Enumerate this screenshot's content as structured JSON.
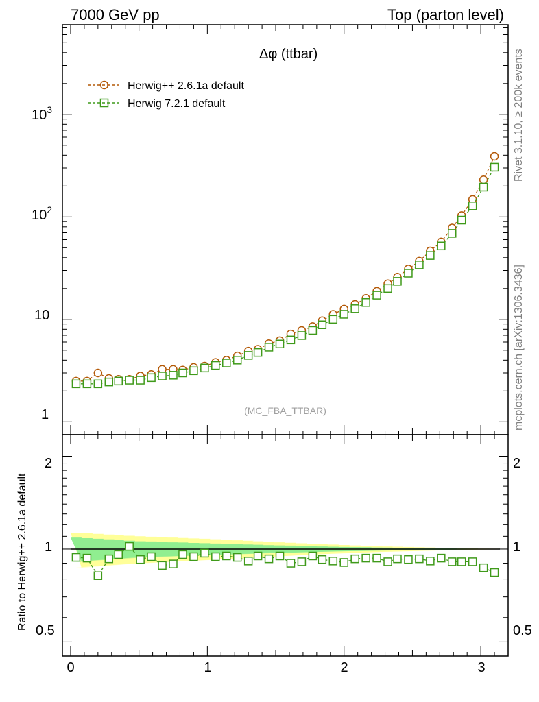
{
  "header": {
    "left": "7000 GeV pp",
    "right": "Top (parton level)"
  },
  "plot": {
    "title": "Δφ (ttbar)",
    "watermark": "(MC_FBA_TTBAR)"
  },
  "side": {
    "rivet": "Rivet 3.1.10, ≥ 200k events",
    "mcplots": "mcplots.cern.ch [arXiv:1306.3436]"
  },
  "legend": {
    "s1": "Herwig++ 2.6.1a default",
    "s2": "Herwig 7.2.1 default"
  },
  "ratio": {
    "ylabel": "Ratio to Herwig++ 2.6.1a default"
  },
  "ticks": {
    "main_y": [
      "1",
      "10",
      "10",
      "10"
    ],
    "main_y_exp": [
      "2",
      "3"
    ],
    "ratio_y": [
      "0.5",
      "1",
      "2"
    ],
    "x": [
      "0",
      "1",
      "2",
      "3"
    ]
  },
  "colors": {
    "s1": "#b35806",
    "s2": "#3f9a1a",
    "band_inner": "#90ee90",
    "band_outer": "#ffff99"
  },
  "chart_data": {
    "type": "line",
    "main": {
      "x": [
        0.04,
        0.12,
        0.2,
        0.28,
        0.35,
        0.43,
        0.51,
        0.59,
        0.67,
        0.75,
        0.82,
        0.9,
        0.98,
        1.06,
        1.14,
        1.22,
        1.3,
        1.37,
        1.45,
        1.53,
        1.61,
        1.69,
        1.77,
        1.84,
        1.92,
        2.0,
        2.08,
        2.16,
        2.24,
        2.32,
        2.39,
        2.47,
        2.55,
        2.63,
        2.71,
        2.79,
        2.86,
        2.94,
        3.02,
        3.1
      ],
      "series": [
        {
          "name": "Herwig++ 2.6.1a default",
          "values": [
            2.5,
            2.5,
            3.0,
            2.65,
            2.6,
            2.6,
            2.8,
            2.9,
            3.25,
            3.25,
            3.2,
            3.4,
            3.5,
            3.8,
            4.0,
            4.4,
            4.9,
            5.1,
            5.8,
            6.2,
            7.2,
            7.8,
            8.5,
            9.7,
            11.2,
            12.6,
            14.0,
            16.0,
            18.8,
            22.3,
            25.8,
            31.0,
            37.0,
            46.5,
            57.0,
            78.0,
            103.0,
            148.0,
            230.0,
            390.0
          ]
        },
        {
          "name": "Herwig 7.2.1 default",
          "values": [
            2.35,
            2.35,
            2.35,
            2.45,
            2.5,
            2.55,
            2.55,
            2.7,
            2.8,
            2.85,
            3.0,
            3.15,
            3.35,
            3.55,
            3.75,
            4.0,
            4.45,
            4.75,
            5.35,
            5.75,
            6.3,
            6.95,
            7.8,
            8.85,
            10.0,
            11.2,
            12.7,
            14.6,
            17.2,
            20.0,
            23.5,
            28.2,
            34.0,
            42.0,
            52.0,
            69.0,
            93.0,
            128.0,
            195.0,
            305.0
          ]
        }
      ],
      "yscale": "log",
      "ylim": [
        0.75,
        7500
      ],
      "xlim": [
        -0.06,
        3.2
      ]
    },
    "ratio": {
      "values": [
        0.94,
        0.935,
        0.82,
        0.93,
        0.96,
        1.02,
        0.925,
        0.945,
        0.885,
        0.895,
        0.96,
        0.945,
        0.97,
        0.945,
        0.95,
        0.94,
        0.915,
        0.95,
        0.93,
        0.95,
        0.9,
        0.91,
        0.95,
        0.925,
        0.915,
        0.905,
        0.93,
        0.935,
        0.935,
        0.91,
        0.93,
        0.925,
        0.93,
        0.915,
        0.935,
        0.91,
        0.91,
        0.91,
        0.87,
        0.84
      ],
      "band_inner": [
        0.09,
        0.085,
        0.08,
        0.075,
        0.07,
        0.065,
        0.06,
        0.058,
        0.055,
        0.052,
        0.05,
        0.047,
        0.045,
        0.042,
        0.04,
        0.038,
        0.035,
        0.033,
        0.03,
        0.028,
        0.026,
        0.024,
        0.022,
        0.02,
        0.018,
        0.016,
        0.015,
        0.014,
        0.012,
        0.011,
        0.01,
        0.009,
        0.008,
        0.007,
        0.006,
        0.005,
        0.004,
        0.003,
        0.002,
        0.002
      ],
      "band_outer": [
        0.13,
        0.125,
        0.12,
        0.115,
        0.11,
        0.105,
        0.1,
        0.097,
        0.094,
        0.09,
        0.087,
        0.083,
        0.08,
        0.076,
        0.072,
        0.068,
        0.064,
        0.06,
        0.056,
        0.052,
        0.048,
        0.044,
        0.04,
        0.037,
        0.034,
        0.031,
        0.028,
        0.025,
        0.022,
        0.02,
        0.018,
        0.016,
        0.014,
        0.012,
        0.01,
        0.008,
        0.006,
        0.005,
        0.004,
        0.003
      ],
      "yscale": "log",
      "ylim": [
        0.45,
        2.35
      ]
    }
  }
}
